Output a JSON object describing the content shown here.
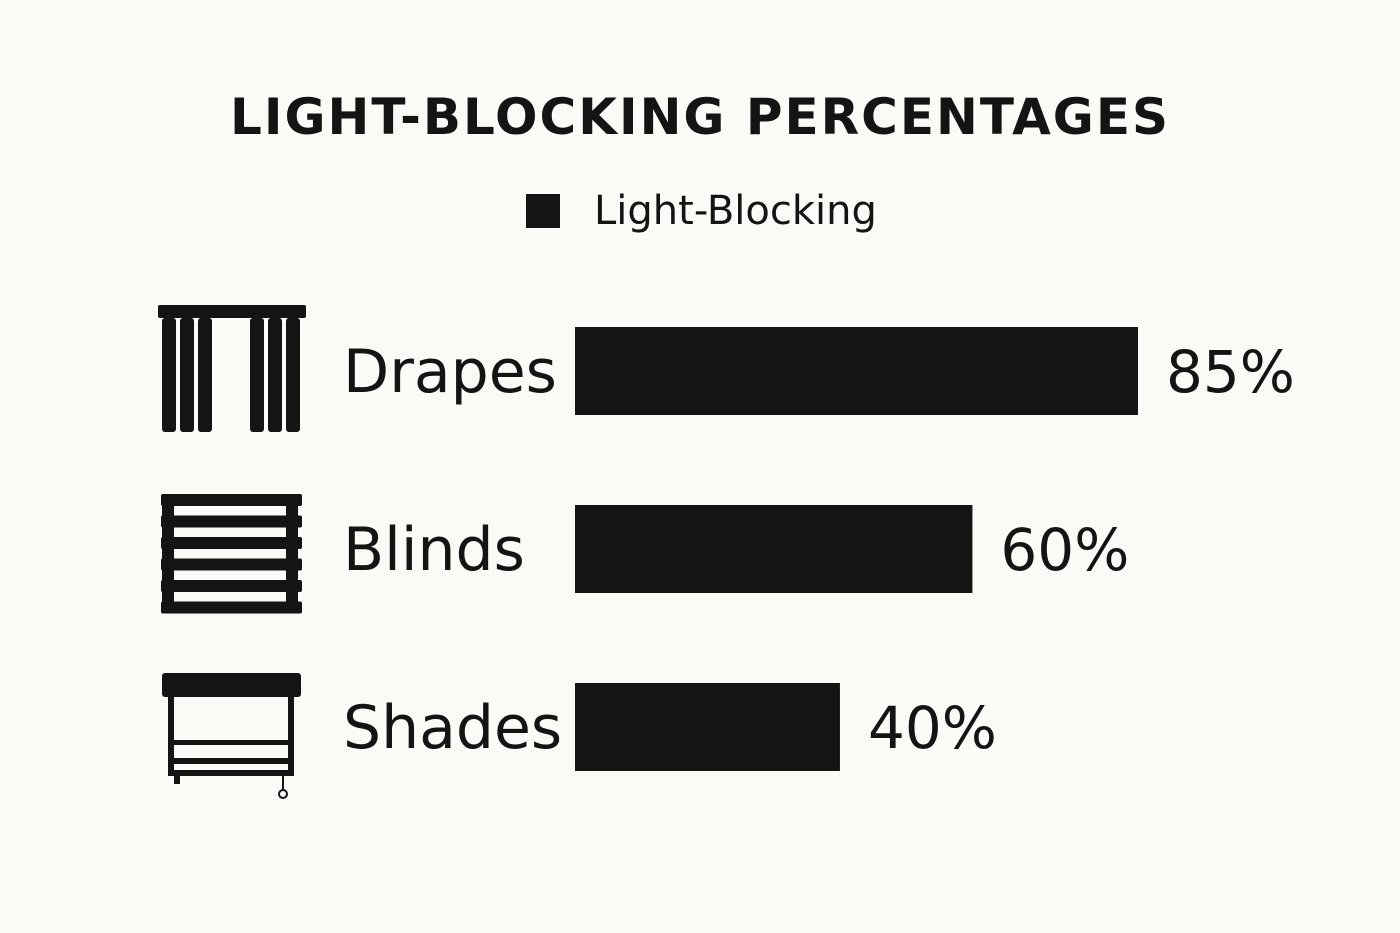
{
  "chart_data": {
    "type": "bar",
    "orientation": "horizontal",
    "title": "LIGHT-BLOCKING PERCENTAGES",
    "legend": [
      "Light-Blocking"
    ],
    "legend_position": "top-center",
    "categories": [
      "Drapes",
      "Blinds",
      "Shades"
    ],
    "icons": [
      "drapes-icon",
      "blinds-icon",
      "shades-icon"
    ],
    "series": [
      {
        "name": "Light-Blocking",
        "values": [
          85,
          60,
          40
        ],
        "color": "#141414"
      }
    ],
    "value_labels": [
      "85%",
      "60%",
      "40%"
    ],
    "xlim": [
      0,
      100
    ],
    "grid": false
  }
}
